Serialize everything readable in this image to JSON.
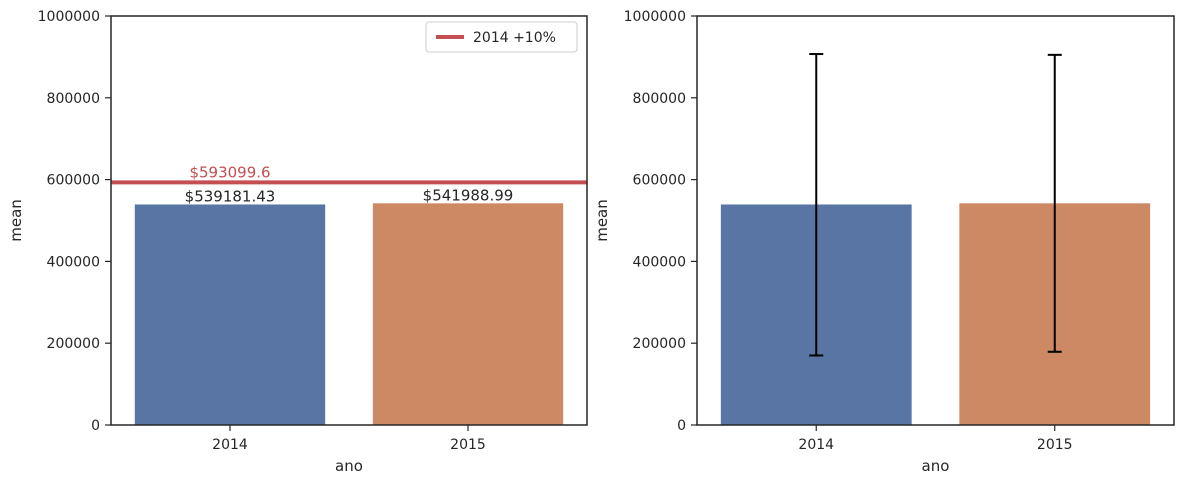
{
  "chart_data": [
    {
      "type": "bar",
      "categories": [
        "2014",
        "2015"
      ],
      "values": [
        539181.43,
        541988.99
      ],
      "colors": [
        "#5975a4",
        "#cc8963"
      ],
      "value_labels": [
        "$539181.43",
        "$541988.99"
      ],
      "ylim": [
        0,
        1000000
      ],
      "yticks": [
        "0",
        "200000",
        "400000",
        "600000",
        "800000",
        "1000000"
      ],
      "xlabel": "ano",
      "ylabel": "mean",
      "reference_line": {
        "value": 593099.6,
        "label": "$593099.6",
        "legend": "2014 +10%",
        "color": "#c44e52"
      },
      "legend_position": "top-right",
      "grid": false
    },
    {
      "type": "bar",
      "categories": [
        "2014",
        "2015"
      ],
      "values": [
        539181.43,
        541988.99
      ],
      "colors": [
        "#5975a4",
        "#cc8963"
      ],
      "error_bars": [
        {
          "low": 170000,
          "high": 907000
        },
        {
          "low": 179000,
          "high": 905000
        }
      ],
      "ylim": [
        0,
        1000000
      ],
      "yticks": [
        "0",
        "200000",
        "400000",
        "600000",
        "800000",
        "1000000"
      ],
      "xlabel": "ano",
      "ylabel": "mean",
      "grid": false
    }
  ]
}
